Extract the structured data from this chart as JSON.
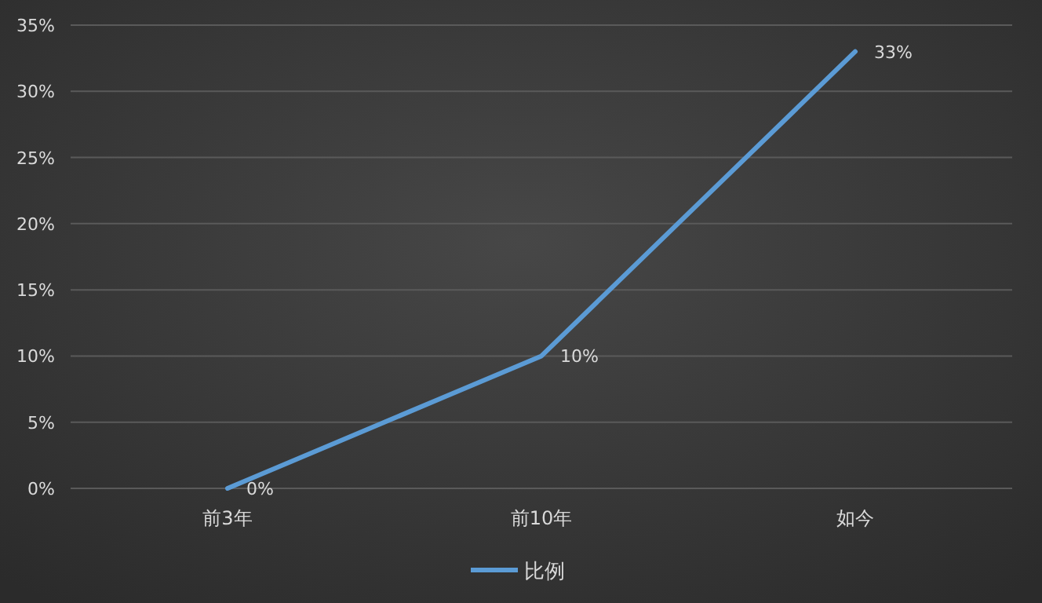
{
  "chart_data": {
    "type": "line",
    "categories": [
      "前3年",
      "前10年",
      "如今"
    ],
    "series": [
      {
        "name": "比例",
        "color": "#5b9bd5",
        "values": [
          0,
          10,
          33
        ],
        "value_labels": [
          "0%",
          "10%",
          "33%"
        ]
      }
    ],
    "ylim": [
      0,
      35
    ],
    "yticks": [
      {
        "value": 0,
        "label": "0%"
      },
      {
        "value": 5,
        "label": "5%"
      },
      {
        "value": 10,
        "label": "10%"
      },
      {
        "value": 15,
        "label": "15%"
      },
      {
        "value": 20,
        "label": "20%"
      },
      {
        "value": 25,
        "label": "25%"
      },
      {
        "value": 30,
        "label": "30%"
      },
      {
        "value": 35,
        "label": "35%"
      }
    ],
    "grid": "y",
    "legend": "bottom",
    "marker": "none",
    "line_style": "solid"
  }
}
